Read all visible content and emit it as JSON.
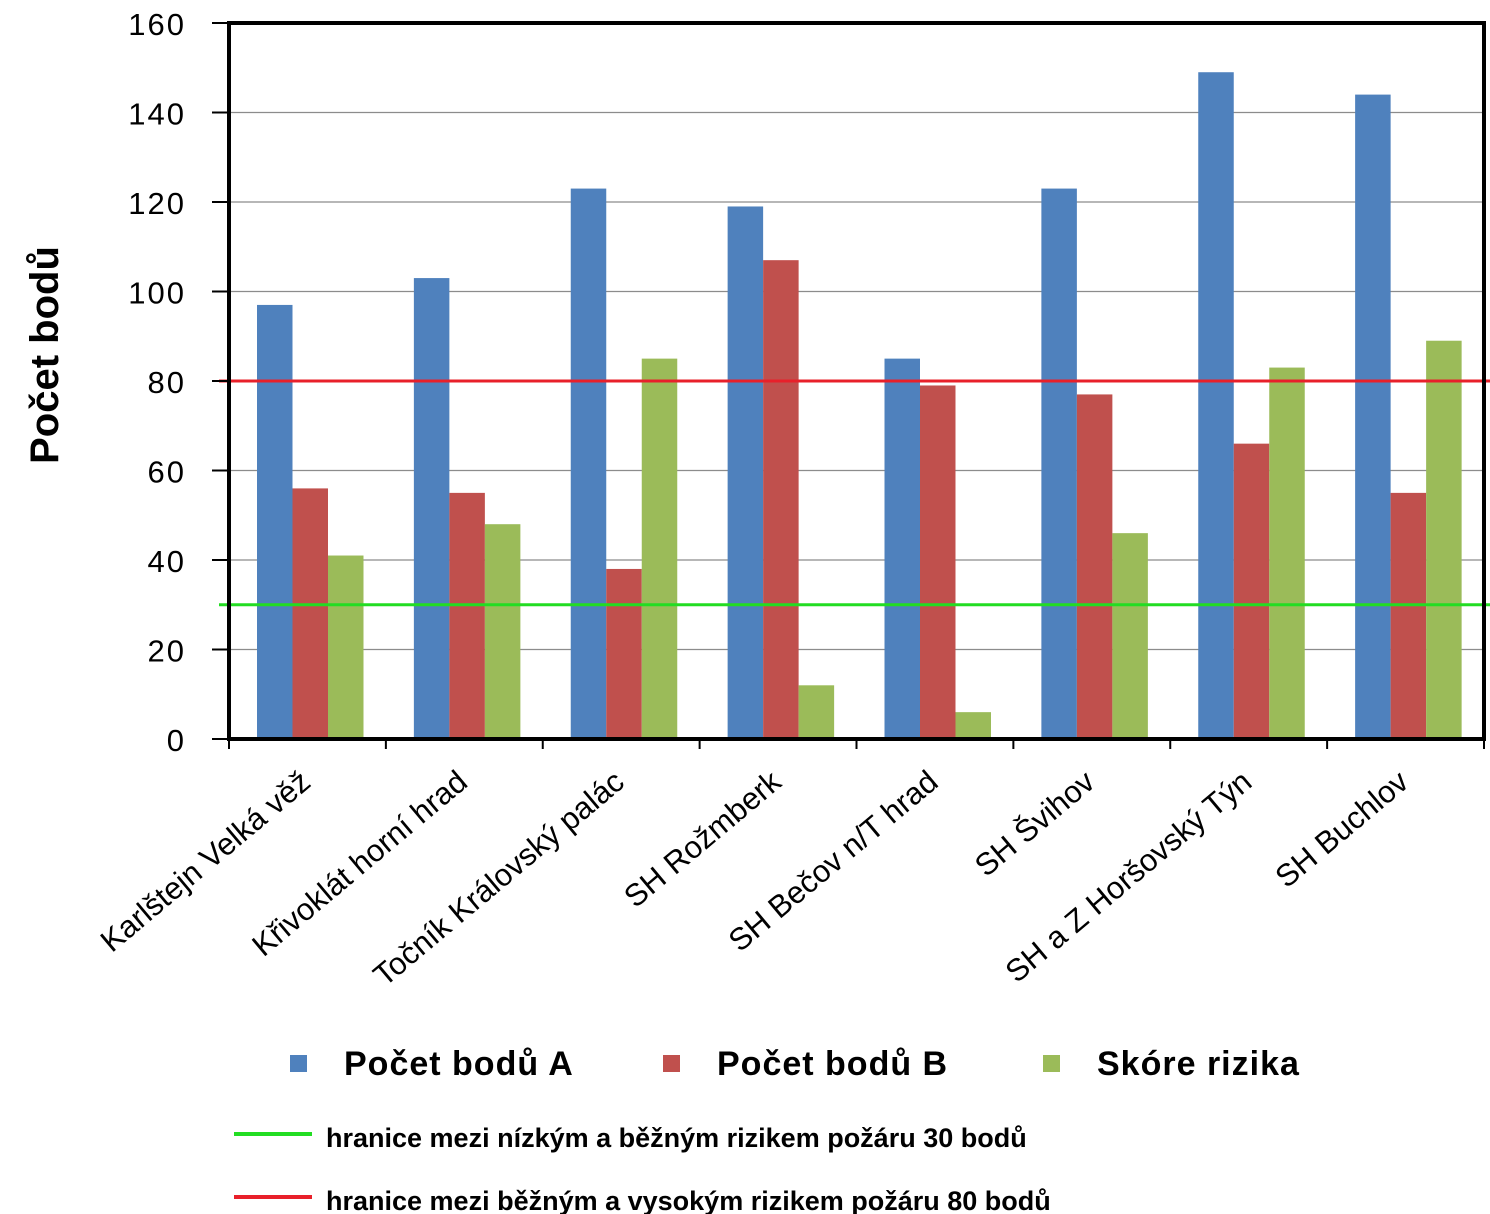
{
  "chart_data": {
    "type": "bar",
    "ylabel": "Počet bodů",
    "xlabel": "",
    "ylim": [
      0,
      160
    ],
    "yticks": [
      0,
      20,
      40,
      60,
      80,
      100,
      120,
      140,
      160
    ],
    "grid": true,
    "categories": [
      "Karlštejn Velká věž",
      "Křivoklát horní hrad",
      "Točník  Královský palác",
      "SH Rožmberk",
      "SH Bečov n/T hrad",
      "SH Švihov",
      "SH a Z Horšovský Týn",
      "SH Buchlov"
    ],
    "series": [
      {
        "name": "Počet bodů A",
        "color": "#4F81BD",
        "values": [
          97,
          103,
          123,
          119,
          85,
          123,
          149,
          144
        ]
      },
      {
        "name": "Počet bodů B",
        "color": "#C0504D",
        "values": [
          56,
          55,
          38,
          107,
          79,
          77,
          66,
          55
        ]
      },
      {
        "name": "Skóre rizika",
        "color": "#9BBB59",
        "values": [
          41,
          48,
          85,
          12,
          6,
          46,
          83,
          89
        ]
      }
    ],
    "thresholds": [
      {
        "label": "hranice mezi nízkým  a  běžným rizikem požáru   30 bodů",
        "value": 30,
        "color": "#22DD22"
      },
      {
        "label": "hranice mezi běžným a vysokým rizikem požáru  80 bodů",
        "value": 80,
        "color": "#E8202A"
      }
    ],
    "legend_position": "bottom"
  }
}
